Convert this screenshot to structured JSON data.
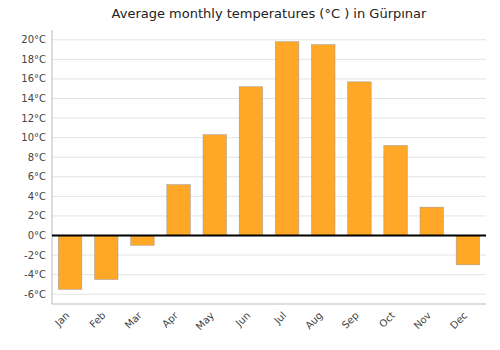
{
  "chart_data": {
    "type": "bar",
    "title": "Average monthly temperatures (°C ) in Gürpınar",
    "categories": [
      "Jan",
      "Feb",
      "Mar",
      "Apr",
      "May",
      "Jun",
      "Jul",
      "Aug",
      "Sep",
      "Oct",
      "Nov",
      "Dec"
    ],
    "values": [
      -5.5,
      -4.5,
      -1.0,
      5.2,
      10.3,
      15.2,
      19.8,
      19.5,
      15.7,
      9.2,
      2.9,
      -3.0
    ],
    "color": "#FFA726",
    "ylim": [
      -7,
      21
    ],
    "yticks": [
      {
        "value": -6,
        "label": "-6°C"
      },
      {
        "value": -4,
        "label": "-4°C"
      },
      {
        "value": -2,
        "label": "-2°C"
      },
      {
        "value": 0,
        "label": "0°C"
      },
      {
        "value": 2,
        "label": "2°C"
      },
      {
        "value": 4,
        "label": "4°C"
      },
      {
        "value": 6,
        "label": "6°C"
      },
      {
        "value": 8,
        "label": "8°C"
      },
      {
        "value": 10,
        "label": "10°C"
      },
      {
        "value": 12,
        "label": "12°C"
      },
      {
        "value": 14,
        "label": "14°C"
      },
      {
        "value": 16,
        "label": "16°C"
      },
      {
        "value": 18,
        "label": "18°C"
      },
      {
        "value": 20,
        "label": "20°C"
      }
    ],
    "grid": true
  }
}
